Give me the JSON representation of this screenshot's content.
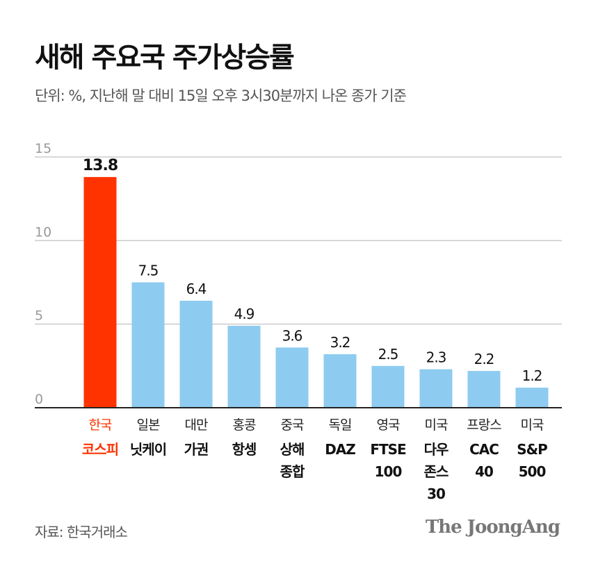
{
  "title": "새해 주요국 주가상승률",
  "subtitle": "단위: %, 지난해 말 대비 15일 오후 3시30분까지 나온 종가 기준",
  "source": "자료: 한국거래소",
  "logo": "The JoongAng",
  "colors": {
    "highlight": "#ff3300",
    "bar": "#8ecbf0",
    "grid": "#cccccc"
  },
  "chart_data": {
    "type": "bar",
    "title": "새해 주요국 주가상승률",
    "categories": [
      {
        "country": "한국",
        "index": [
          "코스피"
        ]
      },
      {
        "country": "일본",
        "index": [
          "닛케이"
        ]
      },
      {
        "country": "대만",
        "index": [
          "가권"
        ]
      },
      {
        "country": "홍콩",
        "index": [
          "항셍"
        ]
      },
      {
        "country": "중국",
        "index": [
          "상해",
          "종합"
        ]
      },
      {
        "country": "독일",
        "index": [
          "DAZ"
        ]
      },
      {
        "country": "영국",
        "index": [
          "FTSE",
          "100"
        ]
      },
      {
        "country": "미국",
        "index": [
          "다우",
          "존스",
          "30"
        ]
      },
      {
        "country": "프랑스",
        "index": [
          "CAC",
          "40"
        ]
      },
      {
        "country": "미국",
        "index": [
          "S&P",
          "500"
        ]
      }
    ],
    "values": [
      13.8,
      7.5,
      6.4,
      4.9,
      3.6,
      3.2,
      2.5,
      2.3,
      2.2,
      1.2
    ],
    "data_labels": [
      "13.8",
      "7.5",
      "6.4",
      "4.9",
      "3.6",
      "3.2",
      "2.5",
      "2.3",
      "2.2",
      "1.2"
    ],
    "highlight_index": 0,
    "yticks": [
      "0",
      "5",
      "10",
      "15"
    ],
    "ylim": [
      0,
      15
    ],
    "grid": true
  }
}
